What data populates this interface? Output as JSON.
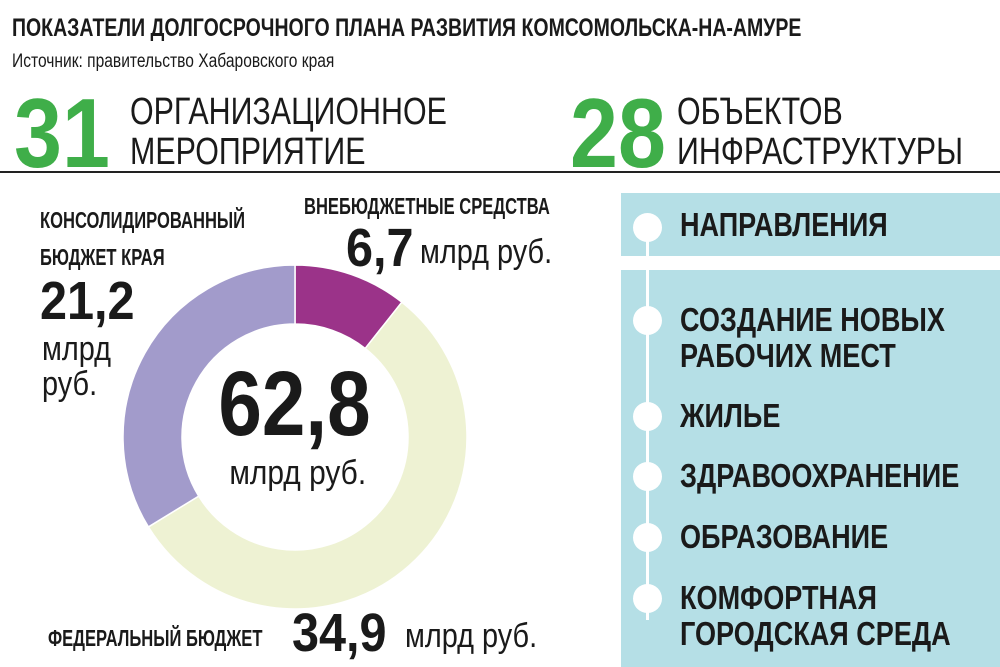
{
  "header": {
    "title": "ПОКАЗАТЕЛИ ДОЛГОСРОЧНОГО ПЛАНА РАЗВИТИЯ КОМСОМОЛЬСКА-НА-АМУРЕ",
    "source": "Источник: правительство Хабаровского края"
  },
  "stats": [
    {
      "number": "31",
      "line1": "ОРГАНИЗАЦИОННОЕ",
      "line2": "МЕРОПРИЯТИЕ"
    },
    {
      "number": "28",
      "line1": "ОБЪЕКТОВ",
      "line2": "ИНФРАСТРУКТУРЫ"
    }
  ],
  "accent_color": "#3fae49",
  "chart_data": {
    "type": "pie",
    "variant": "donut",
    "total": {
      "value": "62,8",
      "unit": "млрд руб."
    },
    "slices": [
      {
        "label_line1": "ВНЕБЮДЖЕТНЫЕ СРЕДСТВА",
        "value": 6.7,
        "value_text": "6,7",
        "unit": "млрд руб.",
        "color": "#9b3389"
      },
      {
        "label_line1": "ФЕДЕРАЛЬНЫЙ БЮДЖЕТ",
        "value": 34.9,
        "value_text": "34,9",
        "unit": "млрд руб.",
        "color": "#eef2d3"
      },
      {
        "label_line1": "КОНСОЛИДИРОВАННЫЙ",
        "label_line2": "БЮДЖЕТ КРАЯ",
        "value": 21.2,
        "value_text": "21,2",
        "unit_line1": "млрд",
        "unit_line2": "руб.",
        "color": "#a29bcb"
      }
    ],
    "start": "top",
    "direction": "clockwise"
  },
  "directions": {
    "heading": "НАПРАВЛЕНИЯ",
    "panel_color": "#b5dfe6",
    "items": [
      {
        "line1": "СОЗДАНИЕ НОВЫХ",
        "line2": "РАБОЧИХ МЕСТ"
      },
      {
        "line1": "ЖИЛЬЕ"
      },
      {
        "line1": "ЗДРАВООХРАНЕНИЕ"
      },
      {
        "line1": "ОБРАЗОВАНИЕ"
      },
      {
        "line1": "КОМФОРТНАЯ",
        "line2": "ГОРОДСКАЯ СРЕДА"
      }
    ]
  }
}
